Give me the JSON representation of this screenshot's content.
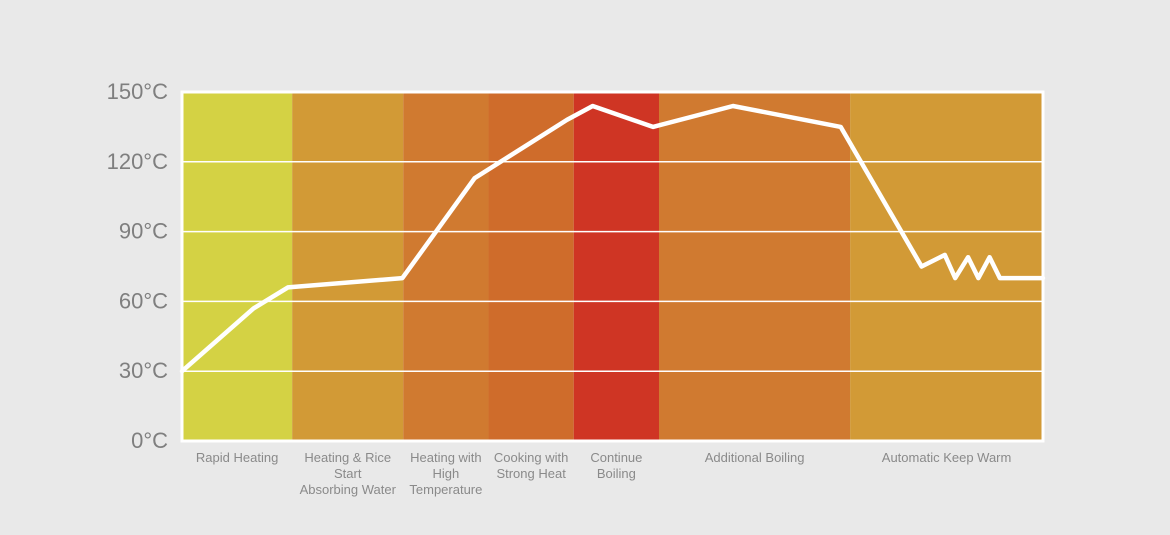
{
  "chart_data": {
    "type": "line",
    "title": "",
    "xlabel": "",
    "ylabel": "",
    "ylim": [
      0,
      150
    ],
    "yticks": [
      "0°C",
      "30°C",
      "60°C",
      "90°C",
      "120°C",
      "150°C"
    ],
    "ytick_values": [
      0,
      30,
      60,
      90,
      120,
      150
    ],
    "grid": true,
    "x_range": [
      0,
      100
    ],
    "phases": [
      {
        "label": [
          "Rapid Heating"
        ],
        "start": 0,
        "end": 12.8,
        "color": "#d4d244"
      },
      {
        "label": [
          "Heating & Rice",
          "Start",
          "Absorbing Water"
        ],
        "start": 12.8,
        "end": 25.7,
        "color": "#d29a36"
      },
      {
        "label": [
          "Heating with",
          "High",
          "Temperature"
        ],
        "start": 25.7,
        "end": 35.6,
        "color": "#d07a30"
      },
      {
        "label": [
          "Cooking with",
          "Strong Heat"
        ],
        "start": 35.6,
        "end": 45.5,
        "color": "#cf6c2b"
      },
      {
        "label": [
          "Continue",
          "Boiling"
        ],
        "start": 45.5,
        "end": 55.4,
        "color": "#cf3524"
      },
      {
        "label": [
          "Additional Boiling"
        ],
        "start": 55.4,
        "end": 77.6,
        "color": "#d07a30"
      },
      {
        "label": [
          "Automatic Keep Warm"
        ],
        "start": 77.6,
        "end": 100,
        "color": "#d29a36"
      }
    ],
    "series": [
      {
        "line_color": "#ffffff",
        "x": [
          0,
          8.3,
          12.3,
          25.6,
          34.0,
          44.7,
          47.7,
          54.7,
          64.0,
          76.5,
          85.9,
          88.6,
          89.8,
          91.3,
          92.5,
          93.8,
          95.0,
          96.4,
          100
        ],
        "y": [
          30,
          57,
          66,
          70,
          113,
          138,
          144,
          135,
          144,
          135,
          75,
          80,
          70,
          79,
          70,
          79,
          70,
          70,
          70
        ]
      }
    ]
  }
}
